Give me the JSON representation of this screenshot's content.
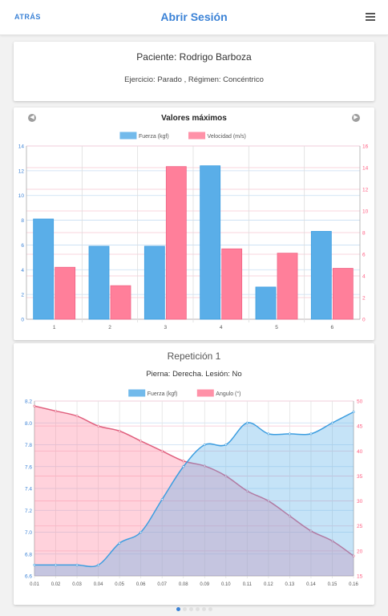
{
  "header": {
    "back_label": "ATRÁS",
    "title": "Abrir Sesión"
  },
  "patient": {
    "name": "Paciente: Rodrigo Barboza",
    "exercise": "Ejercicio: Parado , Régimen: Concéntrico"
  },
  "max_chart": {
    "title": "Valores máximos",
    "legend": [
      {
        "label": "Fuerza (kgf)",
        "color": "#5aaee8"
      },
      {
        "label": "Velocidad (m/s)",
        "color": "#ff7f9a"
      }
    ]
  },
  "repetition": {
    "title": "Repetición 1",
    "subtitle": "Pierna: Derecha. Lesión: No",
    "legend": [
      {
        "label": "Fuerza (kgf)",
        "color": "#5aaee8"
      },
      {
        "label": "Angulo (°)",
        "color": "#ff7f9a"
      }
    ]
  },
  "pager": {
    "count": 6,
    "active": 0
  },
  "chart_data": [
    {
      "type": "bar",
      "title": "Valores máximos",
      "categories": [
        "1",
        "2",
        "3",
        "4",
        "5",
        "6"
      ],
      "series": [
        {
          "name": "Fuerza (kgf)",
          "axis": "left",
          "color": "#5aaee8",
          "values": [
            8.1,
            5.9,
            5.9,
            12.4,
            2.6,
            7.1
          ]
        },
        {
          "name": "Velocidad (m/s)",
          "axis": "right",
          "color": "#ff7f9a",
          "values": [
            4.8,
            3.1,
            14.1,
            6.5,
            6.1,
            4.7
          ]
        }
      ],
      "ylim_left": [
        0,
        14
      ],
      "yticks_left": [
        "0",
        "2",
        "4",
        "6",
        "8",
        "10",
        "12",
        "14"
      ],
      "ylim_right": [
        0,
        16
      ],
      "yticks_right": [
        "0",
        "2",
        "4",
        "6",
        "8",
        "10",
        "12",
        "14",
        "16"
      ],
      "legend": "top-center",
      "grid": true
    },
    {
      "type": "area",
      "x": [
        0.01,
        0.02,
        0.03,
        0.04,
        0.05,
        0.06,
        0.07,
        0.08,
        0.09,
        0.1,
        0.11,
        0.12,
        0.13,
        0.14,
        0.15,
        0.16
      ],
      "xticks": [
        "0.01",
        "0.02",
        "0.03",
        "0.04",
        "0.05",
        "0.06",
        "0.07",
        "0.08",
        "0.09",
        "0.10",
        "0.11",
        "0.12",
        "0.13",
        "0.14",
        "0.15",
        "0.16"
      ],
      "series": [
        {
          "name": "Fuerza (kgf)",
          "axis": "left",
          "color": "#5aaee8",
          "values": [
            6.7,
            6.7,
            6.7,
            6.7,
            6.9,
            7.0,
            7.3,
            7.6,
            7.8,
            7.8,
            8.0,
            7.9,
            7.9,
            7.9,
            8.0,
            8.1
          ]
        },
        {
          "name": "Angulo (°)",
          "axis": "right",
          "color": "#ff7f9a",
          "values": [
            49,
            48,
            47,
            45,
            44,
            42,
            40,
            38,
            37,
            35,
            32,
            30,
            27,
            24,
            22,
            19
          ]
        }
      ],
      "ylim_left": [
        6.6,
        8.2
      ],
      "yticks_left": [
        "6.6",
        "6.8",
        "7.0",
        "7.2",
        "7.4",
        "7.6",
        "7.8",
        "8.0",
        "8.2"
      ],
      "ylim_right": [
        15,
        50
      ],
      "yticks_right": [
        "15",
        "20",
        "25",
        "30",
        "35",
        "40",
        "45",
        "50"
      ],
      "legend": "top-center",
      "grid": true
    }
  ]
}
